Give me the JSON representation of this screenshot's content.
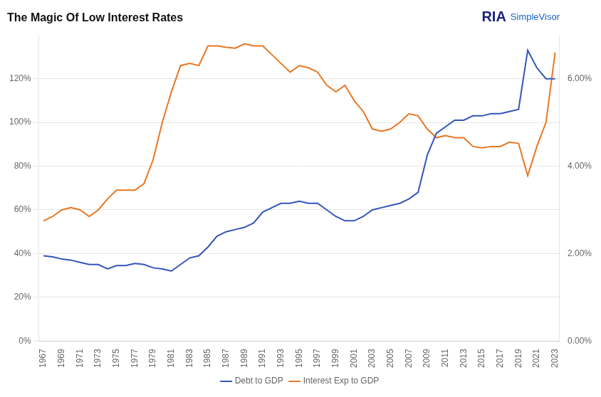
{
  "chart_data": {
    "type": "line",
    "title": "The Magic Of Low Interest Rates",
    "annotations": [
      "RIA",
      "SimpleVisor"
    ],
    "x": [
      1967,
      1968,
      1969,
      1970,
      1971,
      1972,
      1973,
      1974,
      1975,
      1976,
      1977,
      1978,
      1979,
      1980,
      1981,
      1982,
      1983,
      1984,
      1985,
      1986,
      1987,
      1988,
      1989,
      1990,
      1991,
      1992,
      1993,
      1994,
      1995,
      1996,
      1997,
      1998,
      1999,
      2000,
      2001,
      2002,
      2003,
      2004,
      2005,
      2006,
      2007,
      2008,
      2009,
      2010,
      2011,
      2012,
      2013,
      2014,
      2015,
      2016,
      2017,
      2018,
      2019,
      2020,
      2021,
      2022,
      2023
    ],
    "series": [
      {
        "name": "Debt to GDP",
        "color": "#3355bb",
        "values": [
          39,
          38.5,
          37.5,
          37,
          36,
          35,
          35,
          33,
          34.5,
          34.5,
          35.5,
          35,
          33.5,
          33,
          32,
          35,
          38,
          39,
          43,
          48,
          50,
          51,
          52,
          54,
          59,
          61,
          63,
          63,
          64,
          63,
          63,
          60,
          57,
          55,
          55,
          57,
          60,
          61,
          62,
          63,
          65,
          68,
          85,
          95,
          98,
          101,
          101,
          103,
          103,
          104,
          104,
          105,
          106,
          133,
          125,
          120,
          120
        ]
      },
      {
        "name": "Interest Exp to GDP",
        "color": "#e87722",
        "axis": "y2",
        "values": [
          2.75,
          2.85,
          3.0,
          3.05,
          3.0,
          2.85,
          3.0,
          3.25,
          3.45,
          3.45,
          3.45,
          3.6,
          4.15,
          5.0,
          5.7,
          6.3,
          6.35,
          6.3,
          6.75,
          6.75,
          6.72,
          6.7,
          6.8,
          6.75,
          6.75,
          6.55,
          6.35,
          6.15,
          6.3,
          6.25,
          6.15,
          5.85,
          5.7,
          5.85,
          5.5,
          5.25,
          4.85,
          4.8,
          4.85,
          5.0,
          5.2,
          5.15,
          4.85,
          4.65,
          4.7,
          4.65,
          4.65,
          4.45,
          4.42,
          4.45,
          4.45,
          4.55,
          4.52,
          3.78,
          4.45,
          5.0,
          6.6
        ]
      }
    ],
    "xlim": [
      1966.5,
      2023.5
    ],
    "xticks": [
      1967,
      1969,
      1971,
      1973,
      1975,
      1977,
      1979,
      1981,
      1983,
      1985,
      1987,
      1989,
      1991,
      1993,
      1995,
      1997,
      1999,
      2001,
      2003,
      2005,
      2007,
      2009,
      2011,
      2013,
      2015,
      2017,
      2019,
      2021,
      2023
    ],
    "ylim": [
      0,
      140
    ],
    "yticks": [
      {
        "value": 0,
        "label": "0%"
      },
      {
        "value": 20,
        "label": "20%"
      },
      {
        "value": 40,
        "label": "40%"
      },
      {
        "value": 60,
        "label": "60%"
      },
      {
        "value": 80,
        "label": "80%"
      },
      {
        "value": 100,
        "label": "100%"
      },
      {
        "value": 120,
        "label": "120%"
      }
    ],
    "y2lim": [
      0,
      7.0
    ],
    "y2ticks": [
      {
        "value": 0.0,
        "label": "0.00%"
      },
      {
        "value": 2.0,
        "label": "2.00%"
      },
      {
        "value": 4.0,
        "label": "4.00%"
      },
      {
        "value": 6.0,
        "label": "6.00%"
      }
    ],
    "grid": "y",
    "legend": "bottom"
  }
}
